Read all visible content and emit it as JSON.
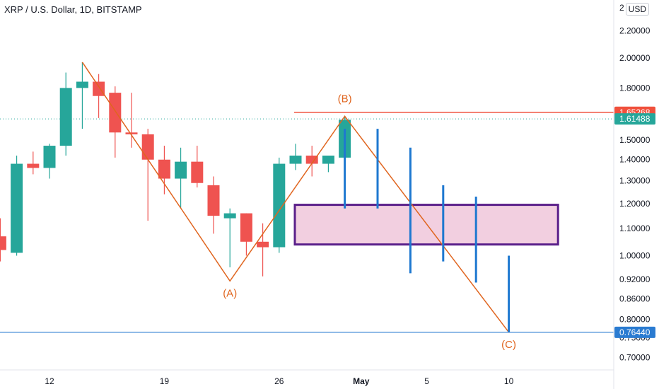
{
  "header": {
    "title": "XRP / U.S. Dollar, 1D, BITSTAMP",
    "currency": "USD"
  },
  "colors": {
    "up": "#26a69a",
    "down": "#ef5350",
    "wave": "#e0651f",
    "resistance": "#f0503c",
    "support": "#2a7bd1",
    "projection": "#1e78d0",
    "zone_border": "#5a1f8a",
    "zone_fill": "#f2cfe0"
  },
  "chart_data": {
    "type": "candlestick",
    "title": "XRP / U.S. Dollar, 1D, BITSTAMP",
    "y_scale": "log",
    "ylim": [
      0.67,
      2.45
    ],
    "y_ticks": [
      {
        "value": 2.2,
        "label": "2.20000"
      },
      {
        "value": 2.0,
        "label": "2.00000"
      },
      {
        "value": 1.8,
        "label": "1.80000"
      },
      {
        "value": 1.5,
        "label": "1.50000"
      },
      {
        "value": 1.4,
        "label": "1.40000"
      },
      {
        "value": 1.3,
        "label": "1.30000"
      },
      {
        "value": 1.2,
        "label": "1.20000"
      },
      {
        "value": 1.1,
        "label": "1.10000"
      },
      {
        "value": 1.0,
        "label": "1.00000"
      },
      {
        "value": 0.92,
        "label": "0.92000"
      },
      {
        "value": 0.86,
        "label": "0.86000"
      },
      {
        "value": 0.8,
        "label": "0.80000"
      },
      {
        "value": 0.75,
        "label": "0.75000"
      },
      {
        "value": 0.7,
        "label": "0.70000"
      }
    ],
    "x_ticks": [
      {
        "label": "12",
        "bold": false,
        "date": "2021-04-12"
      },
      {
        "label": "19",
        "bold": false,
        "date": "2021-04-19"
      },
      {
        "label": "26",
        "bold": false,
        "date": "2021-04-26"
      },
      {
        "label": "May",
        "bold": true,
        "date": "2021-05-01"
      },
      {
        "label": "5",
        "bold": false,
        "date": "2021-05-05"
      },
      {
        "label": "10",
        "bold": false,
        "date": "2021-05-10"
      }
    ],
    "candles": [
      {
        "date": "2021-04-09",
        "open": 1.07,
        "high": 1.14,
        "low": 0.98,
        "close": 1.02
      },
      {
        "date": "2021-04-10",
        "open": 1.01,
        "high": 1.42,
        "low": 1.0,
        "close": 1.38
      },
      {
        "date": "2021-04-11",
        "open": 1.38,
        "high": 1.44,
        "low": 1.33,
        "close": 1.36
      },
      {
        "date": "2021-04-12",
        "open": 1.36,
        "high": 1.48,
        "low": 1.31,
        "close": 1.47
      },
      {
        "date": "2021-04-13",
        "open": 1.47,
        "high": 1.9,
        "low": 1.42,
        "close": 1.8
      },
      {
        "date": "2021-04-14",
        "open": 1.8,
        "high": 1.97,
        "low": 1.56,
        "close": 1.84
      },
      {
        "date": "2021-04-15",
        "open": 1.84,
        "high": 1.89,
        "low": 1.62,
        "close": 1.75
      },
      {
        "date": "2021-04-16",
        "open": 1.77,
        "high": 1.81,
        "low": 1.41,
        "close": 1.54
      },
      {
        "date": "2021-04-17",
        "open": 1.54,
        "high": 1.77,
        "low": 1.46,
        "close": 1.53
      },
      {
        "date": "2021-04-18",
        "open": 1.53,
        "high": 1.56,
        "low": 1.13,
        "close": 1.4
      },
      {
        "date": "2021-04-19",
        "open": 1.4,
        "high": 1.47,
        "low": 1.24,
        "close": 1.31
      },
      {
        "date": "2021-04-20",
        "open": 1.31,
        "high": 1.46,
        "low": 1.18,
        "close": 1.39
      },
      {
        "date": "2021-04-21",
        "open": 1.39,
        "high": 1.47,
        "low": 1.27,
        "close": 1.29
      },
      {
        "date": "2021-04-22",
        "open": 1.28,
        "high": 1.32,
        "low": 1.08,
        "close": 1.15
      },
      {
        "date": "2021-04-23",
        "open": 1.14,
        "high": 1.18,
        "low": 0.96,
        "close": 1.16
      },
      {
        "date": "2021-04-24",
        "open": 1.16,
        "high": 1.16,
        "low": 1.0,
        "close": 1.05
      },
      {
        "date": "2021-04-25",
        "open": 1.05,
        "high": 1.12,
        "low": 0.93,
        "close": 1.03
      },
      {
        "date": "2021-04-26",
        "open": 1.03,
        "high": 1.41,
        "low": 1.01,
        "close": 1.38
      },
      {
        "date": "2021-04-27",
        "open": 1.38,
        "high": 1.48,
        "low": 1.35,
        "close": 1.42
      },
      {
        "date": "2021-04-28",
        "open": 1.42,
        "high": 1.47,
        "low": 1.32,
        "close": 1.38
      },
      {
        "date": "2021-04-29",
        "open": 1.38,
        "high": 1.42,
        "low": 1.34,
        "close": 1.42
      },
      {
        "date": "2021-04-30",
        "open": 1.41,
        "high": 1.63,
        "low": 1.41,
        "close": 1.61
      }
    ],
    "wave": {
      "points": [
        {
          "date": "2021-04-14",
          "price": 1.97
        },
        {
          "date": "2021-04-23",
          "price": 0.915
        },
        {
          "date": "2021-04-30",
          "price": 1.63
        },
        {
          "date": "2021-05-10",
          "price": 0.7644
        }
      ],
      "labels": [
        {
          "text": "(A)",
          "date": "2021-04-23",
          "price": 0.915
        },
        {
          "text": "(B)",
          "date": "2021-04-30",
          "price": 1.63
        },
        {
          "text": "(C)",
          "date": "2021-05-10",
          "price": 0.7644
        }
      ]
    },
    "projection_bars": [
      {
        "date": "2021-04-30",
        "high": 1.56,
        "low": 1.18
      },
      {
        "date": "2021-05-02",
        "high": 1.56,
        "low": 1.18
      },
      {
        "date": "2021-05-04",
        "high": 1.46,
        "low": 0.94
      },
      {
        "date": "2021-05-06",
        "high": 1.28,
        "low": 0.98
      },
      {
        "date": "2021-05-08",
        "high": 1.23,
        "low": 0.91
      },
      {
        "date": "2021-05-10",
        "high": 1.0,
        "low": 0.7644
      }
    ],
    "zone": {
      "from": "2021-04-27",
      "to": "2021-05-13",
      "top": 1.195,
      "bottom": 1.04
    },
    "price_levels": [
      {
        "label": "1.65268",
        "value": 1.65268,
        "kind": "resistance"
      },
      {
        "label": "1.61488",
        "value": 1.61488,
        "kind": "last-price"
      },
      {
        "label": "0.76440",
        "value": 0.7644,
        "kind": "support"
      }
    ]
  }
}
